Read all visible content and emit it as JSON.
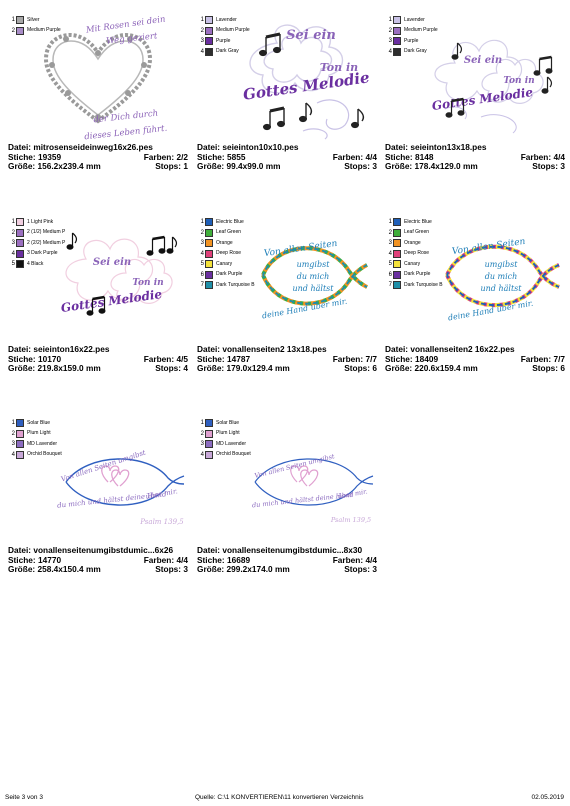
{
  "labels": {
    "datei": "Datei:",
    "stiche": "Stiche:",
    "groesse": "Größe:",
    "farben": "Farben:",
    "stops": "Stops:"
  },
  "cards": [
    {
      "file": "mitrosenseideinweg16x26.pes",
      "stitches": "19359",
      "colors": "2/2",
      "size": "156.2x239.4 mm",
      "stops": "1",
      "palette": [
        {
          "num": "1",
          "name": "Silver",
          "color": "#a8a8a8"
        },
        {
          "num": "2",
          "name": "Medium Purple",
          "color": "#a98dc8"
        }
      ],
      "text": [
        "Mit Rosen sei dein",
        "Weg geziert",
        "der Dich durch",
        "dieses Leben führt."
      ]
    },
    {
      "file": "seieinton10x10.pes",
      "stitches": "5855",
      "colors": "4/4",
      "size": "99.4x99.0 mm",
      "stops": "3",
      "palette": [
        {
          "num": "1",
          "name": "Lavender",
          "color": "#c9c2e6"
        },
        {
          "num": "2",
          "name": "Medium Purple",
          "color": "#9b6fc0"
        },
        {
          "num": "3",
          "name": "Purple",
          "color": "#6a2fa0"
        },
        {
          "num": "4",
          "name": "Dark Gray",
          "color": "#2e2e2e"
        }
      ],
      "text": [
        "Sei ein",
        "Ton in",
        "Gottes Melodie"
      ]
    },
    {
      "file": "seieinton13x18.pes",
      "stitches": "8148",
      "colors": "4/4",
      "size": "178.4x129.0 mm",
      "stops": "3",
      "palette": [
        {
          "num": "1",
          "name": "Lavender",
          "color": "#c9c2e6"
        },
        {
          "num": "2",
          "name": "Medium Purple",
          "color": "#9b6fc0"
        },
        {
          "num": "3",
          "name": "Purple",
          "color": "#6a2fa0"
        },
        {
          "num": "4",
          "name": "Dark Gray",
          "color": "#2e2e2e"
        }
      ],
      "text": [
        "Sei ein",
        "Ton in",
        "Gottes Melodie"
      ]
    },
    {
      "file": "seieinton16x22.pes",
      "stitches": "10170",
      "colors": "4/5",
      "size": "219.8x159.0 mm",
      "stops": "4",
      "palette": [
        {
          "num": "1",
          "name": "1 Light Pink",
          "color": "#f1cfe0"
        },
        {
          "num": "2",
          "name": "2 (1/2) Medium P",
          "color": "#9b6fc0"
        },
        {
          "num": "3",
          "name": "2 (2/2) Medium P",
          "color": "#9b6fc0"
        },
        {
          "num": "4",
          "name": "3 Dark Purple",
          "color": "#6a2fa0"
        },
        {
          "num": "5",
          "name": "4 Black",
          "color": "#111111"
        }
      ],
      "text": [
        "Sei ein",
        "Ton in",
        "Gottes Melodie"
      ]
    },
    {
      "file": "vonallenseiten2 13x18.pes",
      "stitches": "14787",
      "colors": "7/7",
      "size": "179.0x129.4 mm",
      "stops": "6",
      "palette": [
        {
          "num": "1",
          "name": "Electric Blue",
          "color": "#1f5fb8"
        },
        {
          "num": "2",
          "name": "Leaf Green",
          "color": "#3fae3a"
        },
        {
          "num": "3",
          "name": "Orange",
          "color": "#f29322"
        },
        {
          "num": "4",
          "name": "Deep Rose",
          "color": "#e0407a"
        },
        {
          "num": "5",
          "name": "Canary",
          "color": "#f4e23a"
        },
        {
          "num": "6",
          "name": "Dark Purple",
          "color": "#6a2fa0"
        },
        {
          "num": "7",
          "name": "Dark Turquoise B",
          "color": "#1f8fa8"
        }
      ],
      "text": [
        "Von allen Seiten",
        "umgibst",
        "du mich",
        "und hältst",
        "deine Hand über mir."
      ]
    },
    {
      "file": "vonallenseiten2 16x22.pes",
      "stitches": "18409",
      "colors": "7/7",
      "size": "220.6x159.4 mm",
      "stops": "6",
      "palette": [
        {
          "num": "1",
          "name": "Electric Blue",
          "color": "#1f5fb8"
        },
        {
          "num": "2",
          "name": "Leaf Green",
          "color": "#3fae3a"
        },
        {
          "num": "3",
          "name": "Orange",
          "color": "#f29322"
        },
        {
          "num": "4",
          "name": "Deep Rose",
          "color": "#e0407a"
        },
        {
          "num": "5",
          "name": "Canary",
          "color": "#f4e23a"
        },
        {
          "num": "6",
          "name": "Dark Purple",
          "color": "#6a2fa0"
        },
        {
          "num": "7",
          "name": "Dark Turquoise B",
          "color": "#1f8fa8"
        }
      ],
      "text": [
        "Von allen Seiten",
        "umgibst",
        "du mich",
        "und hältst",
        "deine Hand über mir."
      ]
    },
    {
      "file": "vonallenseitenumgibstdumic...6x26",
      "stitches": "14770",
      "colors": "4/4",
      "size": "258.4x150.4 mm",
      "stops": "3",
      "palette": [
        {
          "num": "1",
          "name": "Solar Blue",
          "color": "#2f5fc0"
        },
        {
          "num": "2",
          "name": "Plum Light",
          "color": "#e0a0d0"
        },
        {
          "num": "3",
          "name": "MD Lavender",
          "color": "#8c6cc0"
        },
        {
          "num": "4",
          "name": "Orchid Bouquet",
          "color": "#c8a8d8"
        }
      ],
      "text": [
        "Von allen Seiten umgibst",
        "du mich und hältst deine Hand",
        "über mir.",
        "Psalm 139,5"
      ]
    },
    {
      "file": "vonallenseitenumgibstdumic...8x30",
      "stitches": "16689",
      "colors": "4/4",
      "size": "299.2x174.0 mm",
      "stops": "3",
      "palette": [
        {
          "num": "1",
          "name": "Solar Blue",
          "color": "#2f5fc0"
        },
        {
          "num": "2",
          "name": "Plum Light",
          "color": "#e0a0d0"
        },
        {
          "num": "3",
          "name": "MD Lavender",
          "color": "#8c6cc0"
        },
        {
          "num": "4",
          "name": "Orchid Bouquet",
          "color": "#c8a8d8"
        }
      ],
      "text": [
        "Von allen Seiten umgibst",
        "du mich und hältst deine Hand",
        "über mir.",
        "Psalm 139,5"
      ]
    }
  ],
  "footer": {
    "page": "Seite 3 von 3",
    "source": "Quelle: C:\\1 KONVERTIEREN\\11 konvertieren Verzeichnis",
    "date": "02.05.2019"
  }
}
